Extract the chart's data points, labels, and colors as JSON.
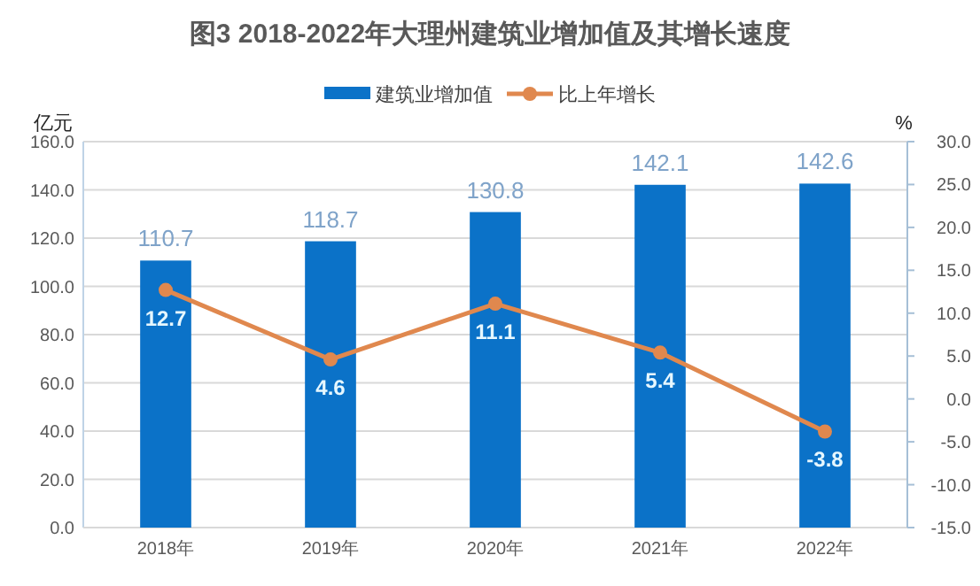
{
  "chart_data": {
    "type": "bar",
    "title": "图3 2018-2022年大理州建筑业增加值及其增长速度",
    "categories": [
      "2018年",
      "2019年",
      "2020年",
      "2021年",
      "2022年"
    ],
    "series": [
      {
        "name": "建筑业增加值",
        "color": "#0b72c8",
        "values": [
          110.7,
          118.7,
          130.8,
          142.1,
          142.6
        ]
      },
      {
        "name": "比上年增长",
        "type": "line",
        "axis": "y2",
        "color": "#e0884e",
        "marker": "circle",
        "values": [
          12.7,
          4.6,
          11.1,
          5.4,
          -3.8
        ]
      }
    ],
    "ylabel": "亿元",
    "y2label": "%",
    "ylim": [
      0,
      160
    ],
    "yticks": [
      {
        "value": 0,
        "label": "0.0"
      },
      {
        "value": 20,
        "label": "20.0"
      },
      {
        "value": 40,
        "label": "40.0"
      },
      {
        "value": 60,
        "label": "60.0"
      },
      {
        "value": 80,
        "label": "80.0"
      },
      {
        "value": 100,
        "label": "100.0"
      },
      {
        "value": 120,
        "label": "120.0"
      },
      {
        "value": 140,
        "label": "140.0"
      },
      {
        "value": 160,
        "label": "160.0"
      }
    ],
    "y2lim": [
      -15,
      30
    ],
    "y2ticks": [
      {
        "value": -15,
        "label": "-15.0"
      },
      {
        "value": -10,
        "label": "-10.0"
      },
      {
        "value": -5,
        "label": "-5.0"
      },
      {
        "value": 0,
        "label": "0.0"
      },
      {
        "value": 5,
        "label": "5.0"
      },
      {
        "value": 10,
        "label": "10.0"
      },
      {
        "value": 15,
        "label": "15.0"
      },
      {
        "value": 20,
        "label": "20.0"
      },
      {
        "value": 25,
        "label": "25.0"
      },
      {
        "value": 30,
        "label": "30.0"
      }
    ],
    "grid": "y",
    "legend": "top",
    "data_labels": true
  }
}
